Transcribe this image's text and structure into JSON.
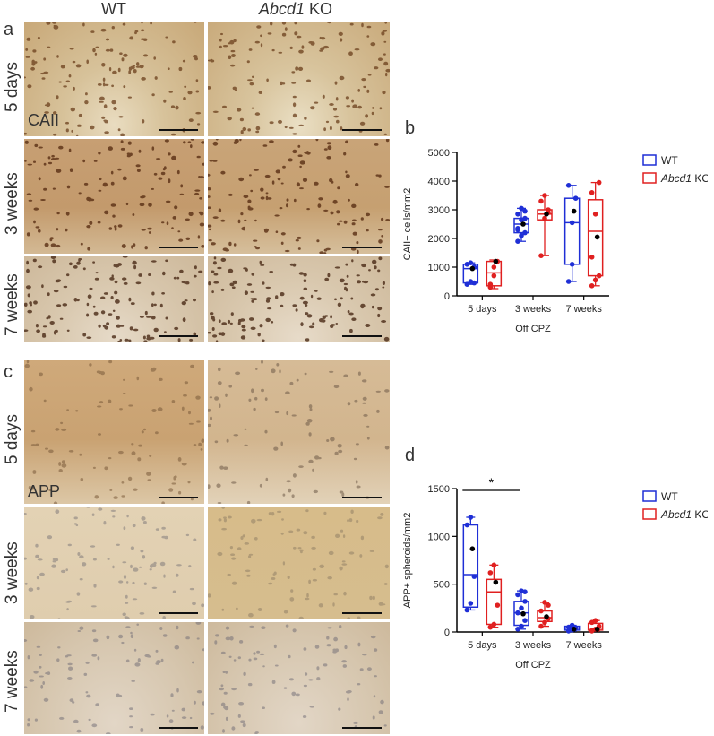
{
  "panels": {
    "a": "a",
    "b": "b",
    "c": "c",
    "d": "d"
  },
  "columns": {
    "wt": "WT",
    "ko_italic": "Abcd1",
    "ko_rest": " KO"
  },
  "rows_top": [
    "5 days",
    "3 weeks",
    "7 weeks"
  ],
  "rows_bottom": [
    "5 days",
    "3 weeks",
    "7 weeks"
  ],
  "stain_top": "CAII",
  "stain_bottom": "APP",
  "colors": {
    "wt": "#1f2fd6",
    "ko": "#e02020",
    "black": "#000000"
  },
  "chart_data": [
    {
      "type": "box",
      "panel": "b",
      "ylabel": "CAII+ cells/mm2",
      "xlabel": "Off CPZ",
      "categories": [
        "5 days",
        "3 weeks",
        "7 weeks"
      ],
      "yticks": [
        0,
        1000,
        2000,
        3000,
        4000,
        5000
      ],
      "ylim": [
        0,
        5000
      ],
      "legend": [
        {
          "italic": "",
          "text": "WT"
        },
        {
          "italic": "Abcd1",
          "text": " KO"
        }
      ],
      "series": [
        {
          "name": "WT",
          "key": "wt",
          "boxes": [
            {
              "min": 400,
              "q1": 450,
              "median": 950,
              "q3": 1100,
              "max": 1150,
              "points": [
                400,
                500,
                1000,
                1100,
                1150,
                450
              ],
              "black": [
                950
              ]
            },
            {
              "min": 1900,
              "q1": 2200,
              "median": 2500,
              "q3": 2700,
              "max": 3050,
              "points": [
                1900,
                2100,
                2200,
                2350,
                2650,
                2700,
                2850,
                3050,
                2950,
                2300
              ],
              "black": [
                2500
              ]
            },
            {
              "min": 500,
              "q1": 1100,
              "median": 2550,
              "q3": 3400,
              "max": 3850,
              "points": [
                500,
                1100,
                3400,
                3850,
                2550
              ],
              "black": [
                2950
              ]
            }
          ]
        },
        {
          "name": "Abcd1 KO",
          "key": "ko",
          "boxes": [
            {
              "min": 250,
              "q1": 350,
              "median": 800,
              "q3": 1200,
              "max": 1250,
              "points": [
                300,
                700,
                1200,
                400,
                1000
              ],
              "black": [
                1200
              ]
            },
            {
              "min": 1400,
              "q1": 2650,
              "median": 2850,
              "q3": 3000,
              "max": 3500,
              "points": [
                1400,
                2700,
                3000,
                3300,
                3500,
                2900
              ],
              "black": [
                2850
              ]
            },
            {
              "min": 350,
              "q1": 700,
              "median": 2250,
              "q3": 3350,
              "max": 3950,
              "points": [
                350,
                550,
                700,
                1350,
                2850,
                3950,
                3600
              ],
              "black": [
                2050
              ]
            }
          ]
        }
      ]
    },
    {
      "type": "box",
      "panel": "d",
      "ylabel": "APP+ spheroids/mm2",
      "xlabel": "Off CPZ",
      "categories": [
        "5 days",
        "3 weeks",
        "7 weeks"
      ],
      "yticks": [
        0,
        500,
        1000,
        1500
      ],
      "ylim": [
        0,
        1500
      ],
      "significance": "*",
      "legend": [
        {
          "italic": "",
          "text": "WT"
        },
        {
          "italic": "Abcd1",
          "text": " KO"
        }
      ],
      "series": [
        {
          "name": "WT",
          "key": "wt",
          "boxes": [
            {
              "min": 230,
              "q1": 260,
              "median": 600,
              "q3": 1120,
              "max": 1200,
              "points": [
                230,
                300,
                580,
                1120,
                1200
              ],
              "black": [
                870
              ]
            },
            {
              "min": 30,
              "q1": 70,
              "median": 200,
              "q3": 320,
              "max": 430,
              "points": [
                30,
                60,
                120,
                200,
                250,
                320,
                390,
                430,
                420
              ],
              "black": [
                190
              ]
            },
            {
              "min": 10,
              "q1": 20,
              "median": 40,
              "q3": 60,
              "max": 70,
              "points": [
                10,
                20,
                40,
                50,
                70
              ],
              "black": [
                30
              ]
            }
          ]
        },
        {
          "name": "Abcd1 KO",
          "key": "ko",
          "boxes": [
            {
              "min": 50,
              "q1": 80,
              "median": 420,
              "q3": 550,
              "max": 700,
              "points": [
                50,
                80,
                280,
                620,
                700
              ],
              "black": [
                520
              ]
            },
            {
              "min": 60,
              "q1": 110,
              "median": 150,
              "q3": 220,
              "max": 310,
              "points": [
                60,
                100,
                140,
                220,
                310,
                280
              ],
              "black": [
                160
              ]
            },
            {
              "min": 10,
              "q1": 20,
              "median": 40,
              "q3": 90,
              "max": 120,
              "points": [
                10,
                30,
                60,
                100,
                120
              ],
              "black": [
                30
              ]
            }
          ]
        }
      ]
    }
  ]
}
